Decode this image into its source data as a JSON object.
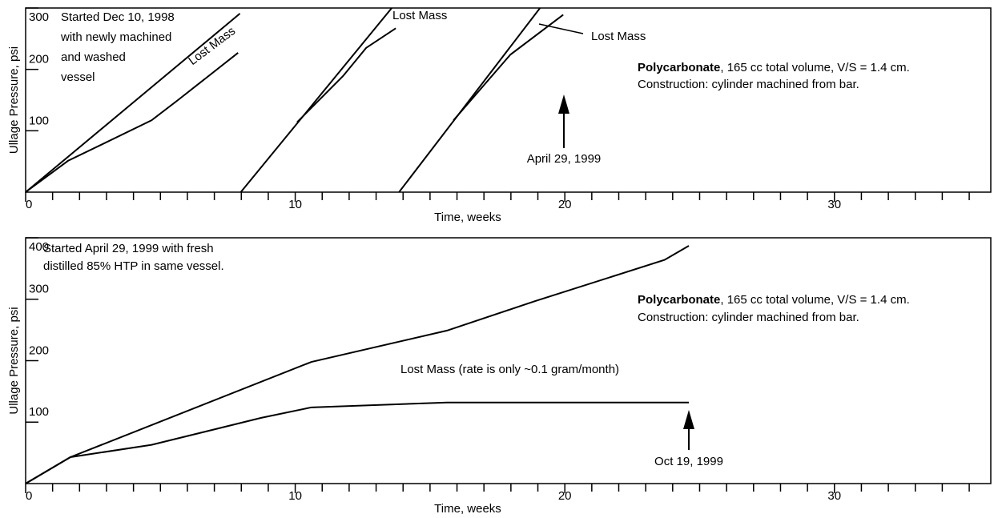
{
  "chart_data": [
    {
      "type": "line",
      "xlabel": "Time, weeks",
      "ylabel": "Ullage Pressure, psi",
      "xlim": [
        0,
        35.8
      ],
      "ylim": [
        0,
        300
      ],
      "xticks": [
        0,
        10,
        20,
        30
      ],
      "yticks": [
        100,
        200,
        300
      ],
      "xminorticks": [
        1,
        2,
        3,
        4,
        5,
        6,
        7,
        8,
        9,
        11,
        12,
        13,
        14,
        15,
        16,
        17,
        18,
        19,
        21,
        22,
        23,
        24,
        25,
        26,
        27,
        28,
        29,
        31,
        32,
        33,
        34,
        35
      ],
      "series": [
        {
          "color": "#000000",
          "x": [
            0,
            7.95
          ],
          "values": [
            0,
            291
          ]
        },
        {
          "color": "#000000",
          "x": [
            0,
            1.57,
            4.67,
            5.65,
            7.88
          ],
          "values": [
            0,
            51,
            117,
            150,
            227
          ]
        },
        {
          "color": "#000000",
          "x": [
            7.98,
            13.58
          ],
          "values": [
            0,
            300
          ]
        },
        {
          "color": "#000000",
          "x": [
            10.07,
            11.77,
            12.63,
            13.73
          ],
          "values": [
            114,
            189,
            235,
            267
          ]
        },
        {
          "color": "#000000",
          "x": [
            13.85,
            19.08
          ],
          "values": [
            0,
            300
          ]
        },
        {
          "color": "#000000",
          "x": [
            15.87,
            17.98,
            19.94
          ],
          "values": [
            117,
            224,
            289
          ]
        }
      ],
      "annotations": [
        {
          "lines": [
            "Started Dec 10, 1998",
            "with newly machined",
            "and washed",
            "vessel"
          ]
        },
        {
          "lines": [
            "Lost Mass"
          ]
        },
        {
          "lines": [
            "Lost Mass"
          ]
        },
        {
          "lines": [
            "Lost Mass"
          ]
        },
        {
          "bold": "Polycarbonate",
          "lines": [
            ", 165 cc total volume, V/S = 1.4 cm.",
            "Construction:  cylinder machined from bar."
          ]
        },
        {
          "lines": [
            "April 29, 1999"
          ]
        }
      ]
    },
    {
      "type": "line",
      "xlabel": "Time, weeks",
      "ylabel": "Ullage Pressure, psi",
      "xlim": [
        0,
        35.8
      ],
      "ylim": [
        0,
        400
      ],
      "xticks": [
        0,
        10,
        20,
        30
      ],
      "yticks": [
        100,
        200,
        300,
        400
      ],
      "xminorticks": [
        1,
        2,
        3,
        4,
        5,
        6,
        7,
        8,
        9,
        11,
        12,
        13,
        14,
        15,
        16,
        17,
        18,
        19,
        21,
        22,
        23,
        24,
        25,
        26,
        27,
        28,
        29,
        31,
        32,
        33,
        34,
        35
      ],
      "series": [
        {
          "color": "#000000",
          "x": [
            0,
            1.66,
            10.6,
            15.63,
            18.9,
            23.7,
            24.6
          ],
          "values": [
            0,
            43,
            198,
            249,
            297,
            364,
            387
          ]
        },
        {
          "color": "#000000",
          "x": [
            0,
            1.66,
            4.67,
            8.74,
            10.6,
            15.63,
            24.6
          ],
          "values": [
            0,
            43,
            63,
            107,
            124,
            132,
            132
          ]
        }
      ],
      "annotations": [
        {
          "lines": [
            "Started April 29, 1999 with fresh",
            "distilled 85% HTP in same vessel."
          ]
        },
        {
          "bold": "Polycarbonate",
          "lines": [
            ", 165 cc total volume, V/S = 1.4 cm.",
            "Construction:  cylinder machined from bar."
          ]
        },
        {
          "lines": [
            "Lost Mass (rate is only ~0.1 gram/month)"
          ]
        },
        {
          "lines": [
            "Oct 19, 1999"
          ]
        }
      ]
    }
  ]
}
